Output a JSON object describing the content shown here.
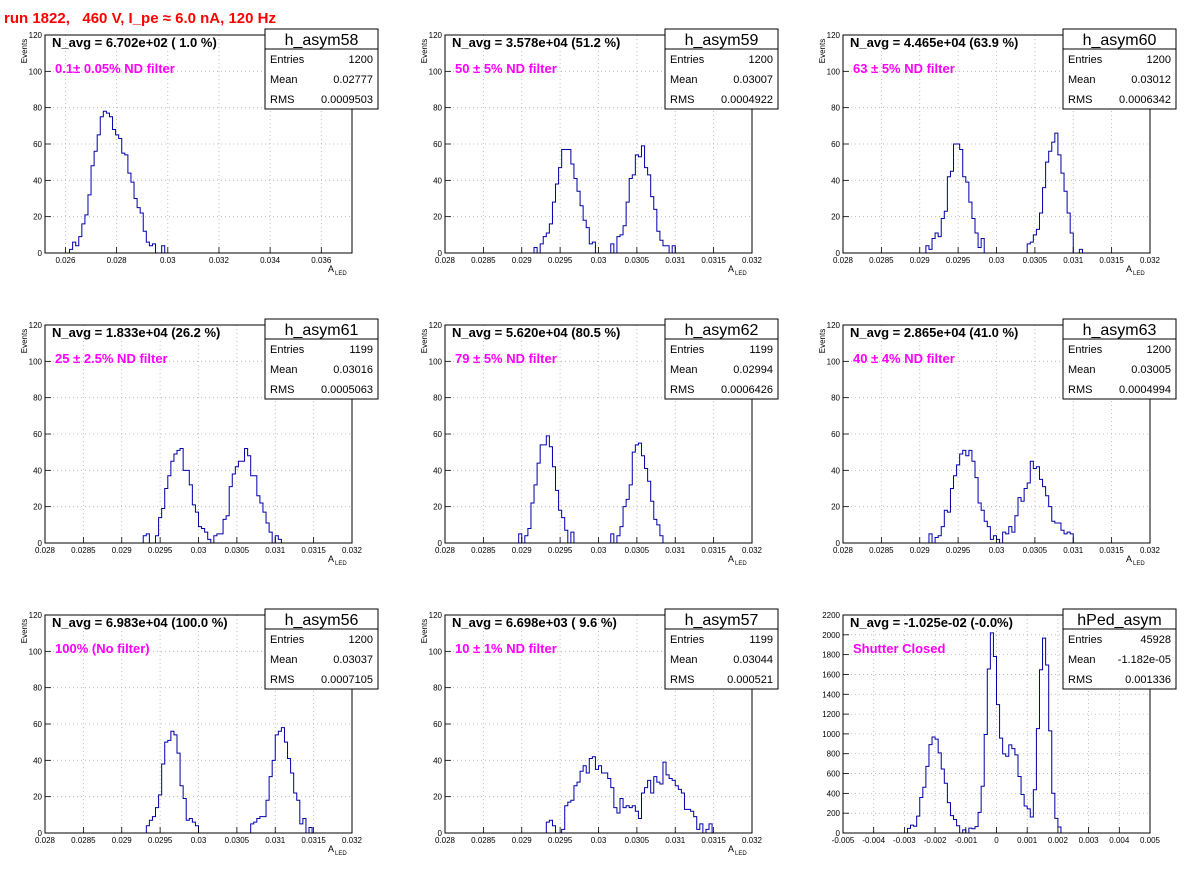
{
  "page": {
    "title": "run 1822,   460 V, I_pe ≈ 6.0 nA, 120 Hz"
  },
  "colors": {
    "hist": "#0000aa",
    "filter_label": "#ff00ff",
    "title": "#ff0000",
    "grid": "#b0b0b0",
    "axis": "#000000"
  },
  "chart_data": [
    {
      "type": "histogram",
      "hist_name": "h_asym58",
      "navg": "N_avg = 6.702e+02 ( 1.0 %)",
      "filter": "0.1± 0.05% ND filter",
      "stats": [
        {
          "label": "Entries",
          "value": "1200"
        },
        {
          "label": "Mean",
          "value": "0.02777"
        },
        {
          "label": "RMS",
          "value": "0.0009503"
        }
      ],
      "ylabel": "Events",
      "xlabel": "A",
      "xlabel_sub": "LED",
      "xlim": [
        0.0252,
        0.0372
      ],
      "ylim": [
        0,
        120
      ],
      "grid": true,
      "legend": "top-right",
      "xticks": [
        0.026,
        0.028,
        0.03,
        0.032,
        0.034,
        0.036
      ],
      "xtick_labels": [
        "0.026",
        "0.028",
        "0.03",
        "0.032",
        "0.034",
        "0.036"
      ],
      "yticks": [
        0,
        20,
        40,
        60,
        80,
        100,
        120
      ],
      "ytick_labels": [
        "0",
        "20",
        "40",
        "60",
        "80",
        "100",
        "120"
      ],
      "components": [
        {
          "center": 0.0274,
          "sigma": 0.0004,
          "peak": 57
        },
        {
          "center": 0.0282,
          "sigma": 0.00055,
          "peak": 50
        }
      ],
      "noise": 4
    },
    {
      "type": "histogram",
      "hist_name": "h_asym59",
      "navg": "N_avg = 3.578e+04 (51.2 %)",
      "filter": "50 ± 5% ND filter",
      "stats": [
        {
          "label": "Entries",
          "value": "1200"
        },
        {
          "label": "Mean",
          "value": "0.03007"
        },
        {
          "label": "RMS",
          "value": "0.0004922"
        }
      ],
      "ylabel": "Events",
      "xlabel": "A",
      "xlabel_sub": "LED",
      "xlim": [
        0.028,
        0.032
      ],
      "ylim": [
        0,
        120
      ],
      "grid": true,
      "legend": "top-right",
      "xticks": [
        0.028,
        0.0285,
        0.029,
        0.0295,
        0.03,
        0.0305,
        0.031,
        0.0315,
        0.032
      ],
      "xtick_labels": [
        "0.028",
        "0.0285",
        "0.029",
        "0.0295",
        "0.03",
        "0.0305",
        "0.031",
        "0.0315",
        "0.032"
      ],
      "yticks": [
        0,
        20,
        40,
        60,
        80,
        100,
        120
      ],
      "ytick_labels": [
        "0",
        "20",
        "40",
        "60",
        "80",
        "100",
        "120"
      ],
      "components": [
        {
          "center": 0.0296,
          "sigma": 0.00014,
          "peak": 57
        },
        {
          "center": 0.03055,
          "sigma": 0.00014,
          "peak": 57
        }
      ],
      "noise": 5
    },
    {
      "type": "histogram",
      "hist_name": "h_asym60",
      "navg": "N_avg = 4.465e+04 (63.9 %)",
      "filter": "63 ± 5% ND filter",
      "stats": [
        {
          "label": "Entries",
          "value": "1200"
        },
        {
          "label": "Mean",
          "value": "0.03012"
        },
        {
          "label": "RMS",
          "value": "0.0006342"
        }
      ],
      "ylabel": "Events",
      "xlabel": "A",
      "xlabel_sub": "LED",
      "xlim": [
        0.028,
        0.032
      ],
      "ylim": [
        0,
        120
      ],
      "grid": true,
      "legend": "top-right",
      "xticks": [
        0.028,
        0.0285,
        0.029,
        0.0295,
        0.03,
        0.0305,
        0.031,
        0.0315,
        0.032
      ],
      "xtick_labels": [
        "0.028",
        "0.0285",
        "0.029",
        "0.0295",
        "0.03",
        "0.0305",
        "0.031",
        "0.0315",
        "0.032"
      ],
      "yticks": [
        0,
        20,
        40,
        60,
        80,
        100,
        120
      ],
      "ytick_labels": [
        "0",
        "20",
        "40",
        "60",
        "80",
        "100",
        "120"
      ],
      "components": [
        {
          "center": 0.0295,
          "sigma": 0.00013,
          "peak": 58
        },
        {
          "center": 0.03075,
          "sigma": 0.00012,
          "peak": 62
        }
      ],
      "noise": 6
    },
    {
      "type": "histogram",
      "hist_name": "h_asym61",
      "navg": "N_avg = 1.833e+04 (26.2 %)",
      "filter": "25 ± 2.5% ND filter",
      "stats": [
        {
          "label": "Entries",
          "value": "1199"
        },
        {
          "label": "Mean",
          "value": "0.03016"
        },
        {
          "label": "RMS",
          "value": "0.0005063"
        }
      ],
      "ylabel": "Events",
      "xlabel": "A",
      "xlabel_sub": "LED",
      "xlim": [
        0.028,
        0.032
      ],
      "ylim": [
        0,
        120
      ],
      "grid": true,
      "legend": "top-right",
      "xticks": [
        0.028,
        0.0285,
        0.029,
        0.0295,
        0.03,
        0.0305,
        0.031,
        0.0315,
        0.032
      ],
      "xtick_labels": [
        "0.028",
        "0.0285",
        "0.029",
        "0.0295",
        "0.03",
        "0.0305",
        "0.031",
        "0.0315",
        "0.032"
      ],
      "yticks": [
        0,
        20,
        40,
        60,
        80,
        100,
        120
      ],
      "ytick_labels": [
        "0",
        "20",
        "40",
        "60",
        "80",
        "100",
        "120"
      ],
      "components": [
        {
          "center": 0.02975,
          "sigma": 0.00015,
          "peak": 50
        },
        {
          "center": 0.0306,
          "sigma": 0.00016,
          "peak": 49
        }
      ],
      "noise": 5
    },
    {
      "type": "histogram",
      "hist_name": "h_asym62",
      "navg": "N_avg = 5.620e+04 (80.5 %)",
      "filter": "79 ± 5% ND filter",
      "stats": [
        {
          "label": "Entries",
          "value": "1199"
        },
        {
          "label": "Mean",
          "value": "0.02994"
        },
        {
          "label": "RMS",
          "value": "0.0006426"
        }
      ],
      "ylabel": "Events",
      "xlabel": "A",
      "xlabel_sub": "LED",
      "xlim": [
        0.028,
        0.032
      ],
      "ylim": [
        0,
        120
      ],
      "grid": true,
      "legend": "top-right",
      "xticks": [
        0.028,
        0.0285,
        0.029,
        0.0295,
        0.03,
        0.0305,
        0.031,
        0.0315,
        0.032
      ],
      "xtick_labels": [
        "0.028",
        "0.0285",
        "0.029",
        "0.0295",
        "0.03",
        "0.0305",
        "0.031",
        "0.0315",
        "0.032"
      ],
      "yticks": [
        0,
        20,
        40,
        60,
        80,
        100,
        120
      ],
      "ytick_labels": [
        "0",
        "20",
        "40",
        "60",
        "80",
        "100",
        "120"
      ],
      "components": [
        {
          "center": 0.02932,
          "sigma": 0.00012,
          "peak": 57
        },
        {
          "center": 0.03053,
          "sigma": 0.00012,
          "peak": 55
        }
      ],
      "noise": 5
    },
    {
      "type": "histogram",
      "hist_name": "h_asym63",
      "navg": "N_avg = 2.865e+04 (41.0 %)",
      "filter": "40 ± 4% ND filter",
      "stats": [
        {
          "label": "Entries",
          "value": "1200"
        },
        {
          "label": "Mean",
          "value": "0.03005"
        },
        {
          "label": "RMS",
          "value": "0.0004994"
        }
      ],
      "ylabel": "Events",
      "xlabel": "A",
      "xlabel_sub": "LED",
      "xlim": [
        0.028,
        0.032
      ],
      "ylim": [
        0,
        120
      ],
      "grid": true,
      "legend": "top-right",
      "xticks": [
        0.028,
        0.0285,
        0.029,
        0.0295,
        0.03,
        0.0305,
        0.031,
        0.0315,
        0.032
      ],
      "xtick_labels": [
        "0.028",
        "0.0285",
        "0.029",
        "0.0295",
        "0.03",
        "0.0305",
        "0.031",
        "0.0315",
        "0.032"
      ],
      "yticks": [
        0,
        20,
        40,
        60,
        80,
        100,
        120
      ],
      "ytick_labels": [
        "0",
        "20",
        "40",
        "60",
        "80",
        "100",
        "120"
      ],
      "components": [
        {
          "center": 0.0296,
          "sigma": 0.00016,
          "peak": 50
        },
        {
          "center": 0.0305,
          "sigma": 0.00017,
          "peak": 42
        }
      ],
      "noise": 5
    },
    {
      "type": "histogram",
      "hist_name": "h_asym56",
      "navg": "N_avg = 6.983e+04 (100.0 %)",
      "filter": "100% (No filter)",
      "stats": [
        {
          "label": "Entries",
          "value": "1200"
        },
        {
          "label": "Mean",
          "value": "0.03037"
        },
        {
          "label": "RMS",
          "value": "0.0007105"
        }
      ],
      "ylabel": "Events",
      "xlabel": "A",
      "xlabel_sub": "LED",
      "xlim": [
        0.028,
        0.032
      ],
      "ylim": [
        0,
        120
      ],
      "grid": true,
      "legend": "top-right",
      "xticks": [
        0.028,
        0.0285,
        0.029,
        0.0295,
        0.03,
        0.0305,
        0.031,
        0.0315,
        0.032
      ],
      "xtick_labels": [
        "0.028",
        "0.0285",
        "0.029",
        "0.0295",
        "0.03",
        "0.0305",
        "0.031",
        "0.0315",
        "0.032"
      ],
      "yticks": [
        0,
        20,
        40,
        60,
        80,
        100,
        120
      ],
      "ytick_labels": [
        "0",
        "20",
        "40",
        "60",
        "80",
        "100",
        "120"
      ],
      "components": [
        {
          "center": 0.02965,
          "sigma": 0.00012,
          "peak": 55
        },
        {
          "center": 0.03108,
          "sigma": 0.00013,
          "peak": 57
        }
      ],
      "noise": 5
    },
    {
      "type": "histogram",
      "hist_name": "h_asym57",
      "navg": "N_avg = 6.698e+03 ( 9.6 %)",
      "filter": "10 ± 1% ND filter",
      "stats": [
        {
          "label": "Entries",
          "value": "1199"
        },
        {
          "label": "Mean",
          "value": "0.03044"
        },
        {
          "label": "RMS",
          "value": "0.000521"
        }
      ],
      "ylabel": "Events",
      "xlabel": "A",
      "xlabel_sub": "LED",
      "xlim": [
        0.028,
        0.032
      ],
      "ylim": [
        0,
        120
      ],
      "grid": true,
      "legend": "top-right",
      "xticks": [
        0.028,
        0.0285,
        0.029,
        0.0295,
        0.03,
        0.0305,
        0.031,
        0.0315,
        0.032
      ],
      "xtick_labels": [
        "0.028",
        "0.0285",
        "0.029",
        "0.0295",
        "0.03",
        "0.0305",
        "0.031",
        "0.0315",
        "0.032"
      ],
      "yticks": [
        0,
        20,
        40,
        60,
        80,
        100,
        120
      ],
      "ytick_labels": [
        "0",
        "20",
        "40",
        "60",
        "80",
        "100",
        "120"
      ],
      "components": [
        {
          "center": 0.02995,
          "sigma": 0.00022,
          "peak": 40
        },
        {
          "center": 0.03085,
          "sigma": 0.00022,
          "peak": 33
        }
      ],
      "noise": 6
    },
    {
      "type": "histogram",
      "hist_name": "hPed_asym",
      "navg": "N_avg = -1.025e-02 (-0.0%)",
      "filter": "Shutter Closed",
      "stats": [
        {
          "label": "Entries",
          "value": "45928"
        },
        {
          "label": "Mean",
          "value": "-1.182e-05"
        },
        {
          "label": "RMS",
          "value": "0.001336"
        }
      ],
      "ylabel": "",
      "xlabel": "",
      "xlabel_sub": "",
      "xlim": [
        -0.005,
        0.005
      ],
      "ylim": [
        0,
        2200
      ],
      "grid": true,
      "legend": "top-right",
      "xticks": [
        -0.005,
        -0.004,
        -0.003,
        -0.002,
        -0.001,
        0,
        0.001,
        0.002,
        0.003,
        0.004,
        0.005
      ],
      "xtick_labels": [
        "-0.005",
        "-0.004",
        "-0.003",
        "-0.002",
        "-0.001",
        "0",
        "0.001",
        "0.002",
        "0.003",
        "0.004",
        "0.005"
      ],
      "yticks": [
        0,
        200,
        400,
        600,
        800,
        1000,
        1200,
        1400,
        1600,
        1800,
        2000,
        2200
      ],
      "ytick_labels": [
        "0",
        "200",
        "400",
        "600",
        "800",
        "1000",
        "1200",
        "1400",
        "1600",
        "1800",
        "2000",
        "2200"
      ],
      "components": [
        {
          "center": -0.002,
          "sigma": 0.0003,
          "peak": 950
        },
        {
          "center": -0.00015,
          "sigma": 0.00018,
          "peak": 1900
        },
        {
          "center": 0.0005,
          "sigma": 0.0003,
          "peak": 850
        },
        {
          "center": 0.00155,
          "sigma": 0.00017,
          "peak": 2000
        }
      ],
      "noise": 60
    }
  ]
}
